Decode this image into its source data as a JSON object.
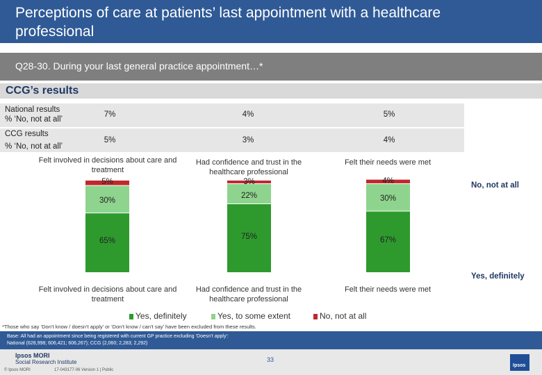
{
  "header": {
    "title": "Perceptions of care at patients’ last appointment with a healthcare professional",
    "question": "Q28-30.  During your last general practice appointment…*",
    "section": "CCG’s results"
  },
  "summary_rows": [
    {
      "label_line1": "National results",
      "label_line2": "% ‘No, not at all’",
      "values": [
        "7%",
        "4%",
        "5%"
      ]
    },
    {
      "label_line1": "CCG results",
      "label_line2": "% ‘No, not at all’",
      "values": [
        "5%",
        "3%",
        "4%"
      ]
    }
  ],
  "side_labels": {
    "no": "No, not at all",
    "yes": "Yes, definitely"
  },
  "chart_data": {
    "type": "bar",
    "stacked": true,
    "categories": [
      "Felt involved in decisions about care and treatment",
      "Had confidence and trust in the healthcare professional",
      "Felt their needs were met"
    ],
    "series": [
      {
        "name": "Yes, definitely",
        "values": [
          65,
          75,
          67
        ],
        "labels": [
          "65%",
          "75%",
          "67%"
        ]
      },
      {
        "name": "Yes, to some extent",
        "values": [
          30,
          22,
          30
        ],
        "labels": [
          "30%",
          "22%",
          "30%"
        ]
      },
      {
        "name": "No, not at all",
        "values": [
          5,
          3,
          4
        ],
        "labels": [
          "5%",
          "3%",
          "4%"
        ]
      }
    ],
    "ylim": [
      0,
      100
    ],
    "colors": {
      "Yes, definitely": "#2e9a2e",
      "Yes, to some extent": "#8ed48e",
      "No, not at all": "#c0282d"
    }
  },
  "footer": {
    "footnote": "*Those who say ‘Don’t know / doesn’t apply’ or ‘Don’t know / can’t say’ have been excluded from these results.",
    "base_line1": "Base: All had an appointment since being registered with current GP practice excluding ‘Doesn’t apply’:",
    "base_line2": "National (628,998; 606,421; 606,267); CCG (2,060; 2,283; 2,292)",
    "logo_line1": "Ipsos MORI",
    "logo_line2": "Social Research Institute",
    "page_number": "33",
    "copyright": "© Ipsos MORI",
    "job": "17-043177-06 Version 1 | Public",
    "brand_mark": "Ipsos"
  }
}
